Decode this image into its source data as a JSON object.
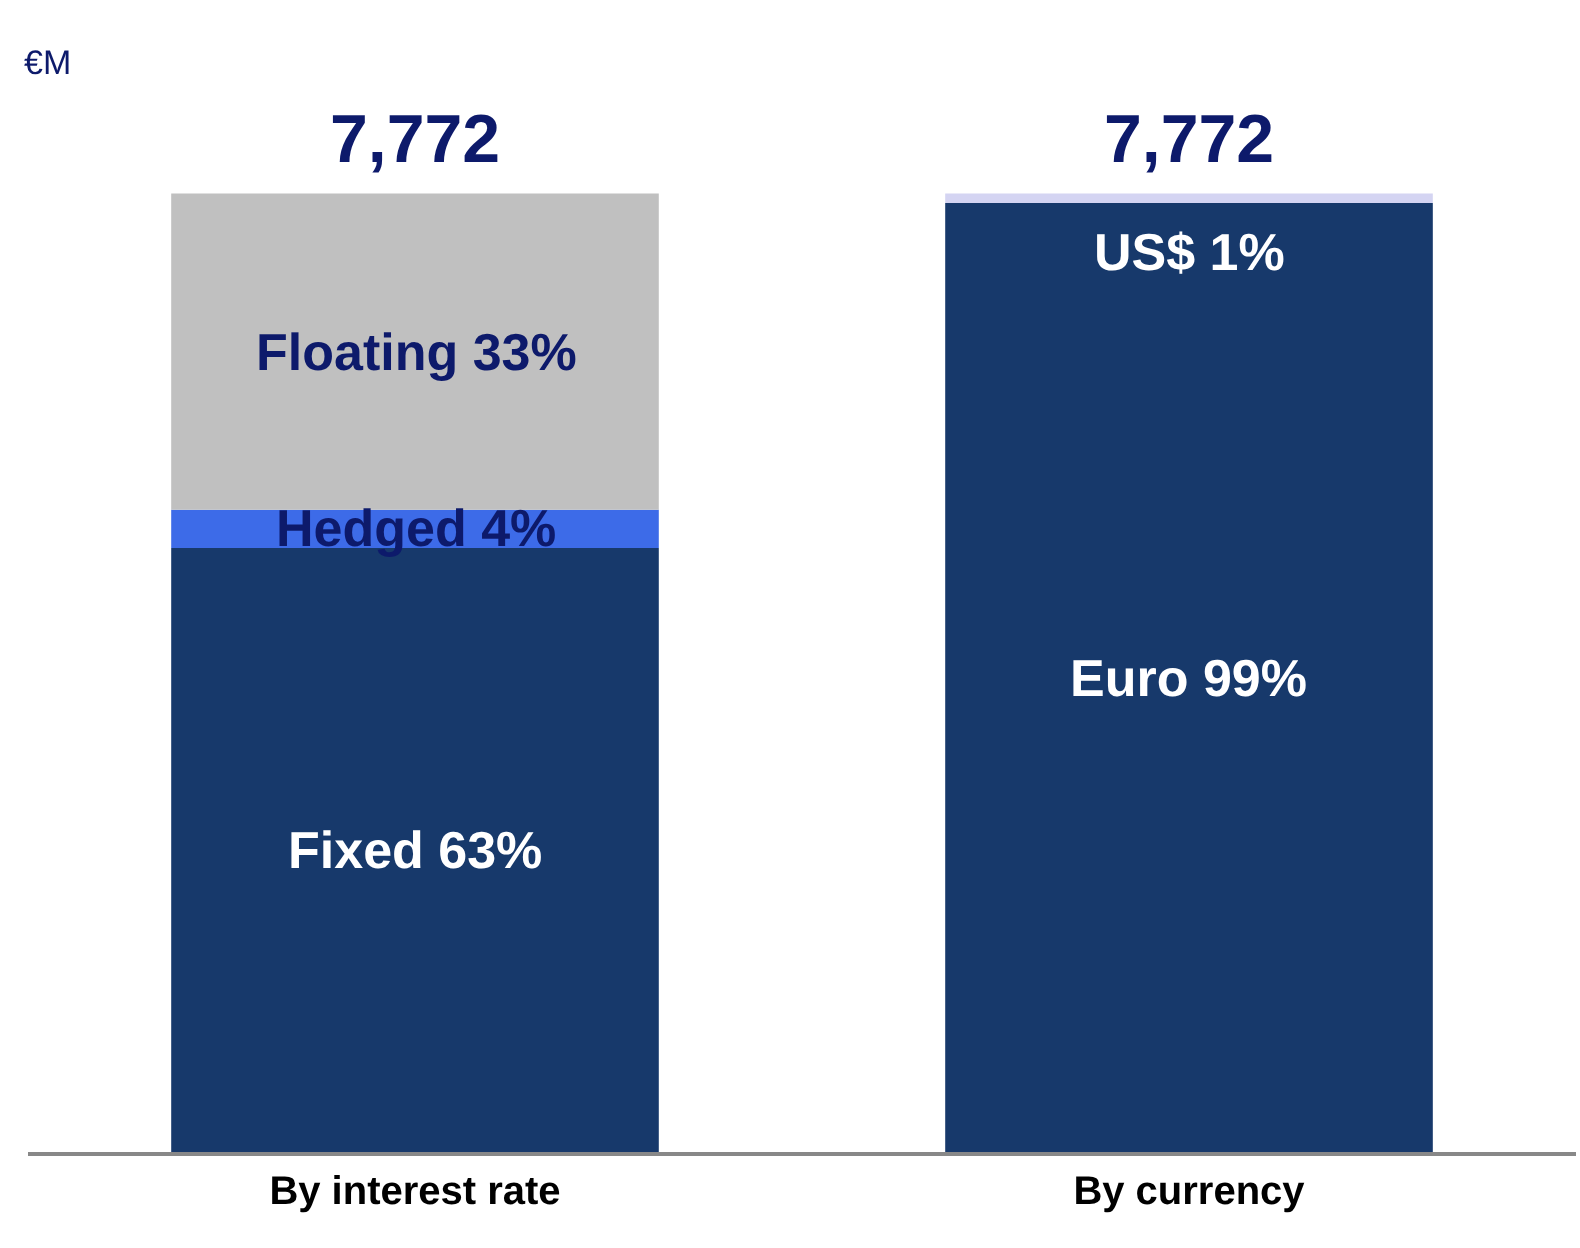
{
  "chart_data": {
    "type": "bar",
    "stacked": true,
    "ylabel": "€M",
    "categories": [
      "By interest rate",
      "By currency"
    ],
    "series": [
      {
        "colors": [
          "#17396b",
          "#17396b"
        ],
        "values": [
          63,
          99
        ],
        "value_labels": [
          "Fixed 63%",
          "Euro 99%"
        ]
      },
      {
        "colors": [
          "#3d6be8",
          "#d4d4f2"
        ],
        "values": [
          4,
          1
        ],
        "value_labels": [
          "Hedged 4%",
          "US$ 1%"
        ]
      },
      {
        "colors": [
          "#c0c0c0",
          null
        ],
        "values": [
          33,
          null
        ],
        "value_labels": [
          "Floating 33%",
          null
        ]
      }
    ],
    "annotations": [
      {
        "text": "7,772",
        "x": "By interest rate",
        "y": 100
      },
      {
        "text": "7,772",
        "x": "By currency",
        "y": 100
      }
    ]
  }
}
